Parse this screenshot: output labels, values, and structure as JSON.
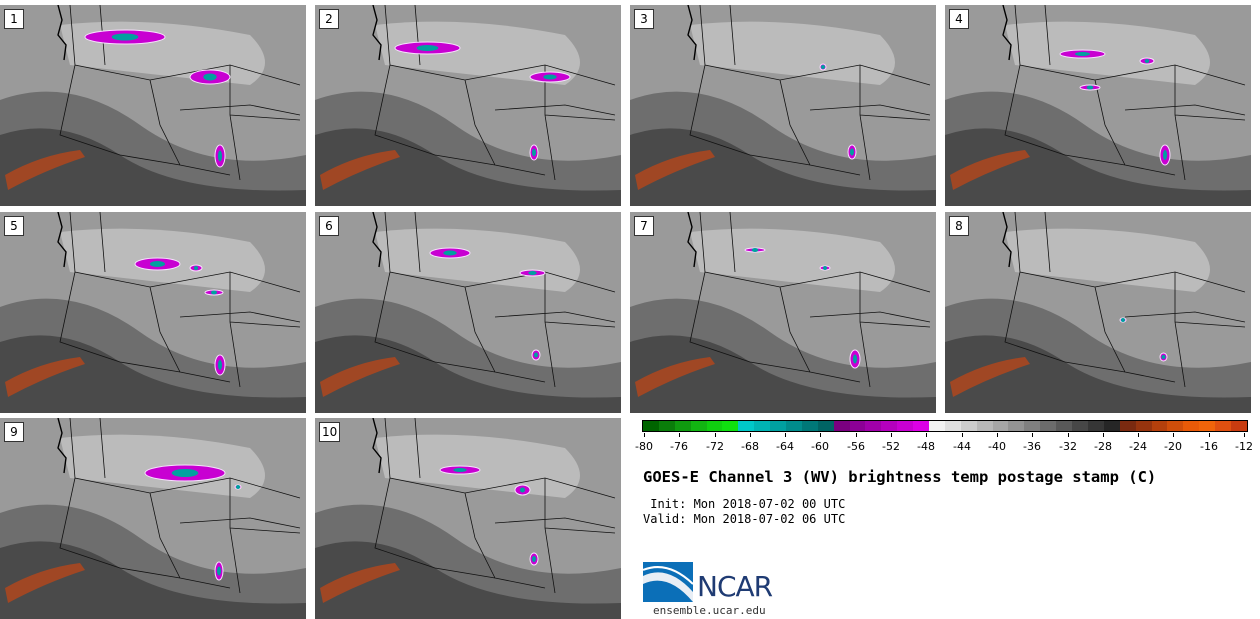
{
  "panels": [
    {
      "label": "1"
    },
    {
      "label": "2"
    },
    {
      "label": "3"
    },
    {
      "label": "4"
    },
    {
      "label": "5"
    },
    {
      "label": "6"
    },
    {
      "label": "7"
    },
    {
      "label": "8"
    },
    {
      "label": "9"
    },
    {
      "label": "10"
    }
  ],
  "colorbar": {
    "ticks": [
      "-80",
      "-76",
      "-72",
      "-68",
      "-64",
      "-60",
      "-56",
      "-52",
      "-48",
      "-44",
      "-40",
      "-36",
      "-32",
      "-28",
      "-24",
      "-20",
      "-16",
      "-12"
    ],
    "colors": [
      "#006400",
      "#0a7d0a",
      "#0f9a0f",
      "#12b512",
      "#10cf10",
      "#10e010",
      "#00c8c8",
      "#00b4b4",
      "#00a0a0",
      "#008c8c",
      "#007878",
      "#006464",
      "#7a0080",
      "#8c0096",
      "#a000aa",
      "#b400be",
      "#c800d2",
      "#dc00e6",
      "#f2f2f2",
      "#e0e0e0",
      "#cccccc",
      "#b8b8b8",
      "#a6a6a6",
      "#939393",
      "#808080",
      "#6c6c6c",
      "#595959",
      "#474747",
      "#363636",
      "#262626",
      "#7a2a10",
      "#96340e",
      "#b4400c",
      "#d04e0a",
      "#e85a08",
      "#f0640a",
      "#e05010",
      "#c83c10"
    ]
  },
  "title": "GOES-E Channel 3 (WV) brightness temp postage stamp (C)",
  "init": " Init: Mon 2018-07-02 00 UTC",
  "valid": "Valid: Mon 2018-07-02 06 UTC",
  "logo_text": "NCAR",
  "site": "ensemble.ucar.edu"
}
